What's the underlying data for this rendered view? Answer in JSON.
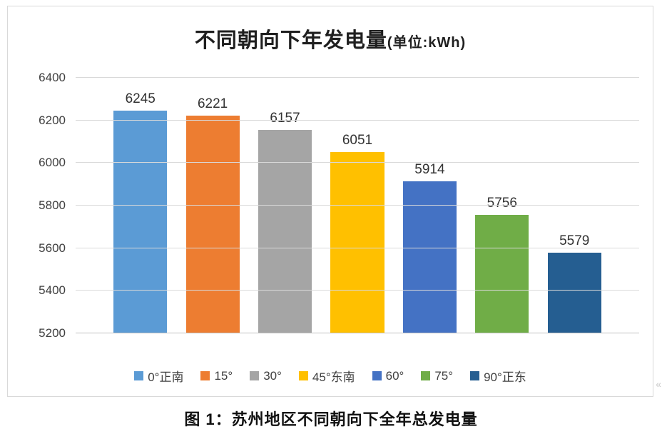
{
  "chart": {
    "title_main": "不同朝向下年发电量",
    "title_unit": "(单位:kWh)"
  },
  "chart_data": {
    "type": "bar",
    "title": "不同朝向下年发电量(单位:kWh)",
    "categories": [
      "0°正南",
      "15°",
      "30°",
      "45°东南",
      "60°",
      "75°",
      "90°正东"
    ],
    "values": [
      6245,
      6221,
      6157,
      6051,
      5914,
      5756,
      5579
    ],
    "colors": [
      "#5B9BD5",
      "#ED7D31",
      "#A5A5A5",
      "#FFC000",
      "#4472C4",
      "#70AD47",
      "#255E91"
    ],
    "ylim": [
      5200,
      6400
    ],
    "yticks": [
      5200,
      5400,
      5600,
      5800,
      6000,
      6200,
      6400
    ],
    "xlabel": "",
    "ylabel": "",
    "grid": true,
    "legend_position": "bottom"
  },
  "caption": "图 1：苏州地区不同朝向下全年总发电量",
  "chevron_glyph": "«"
}
